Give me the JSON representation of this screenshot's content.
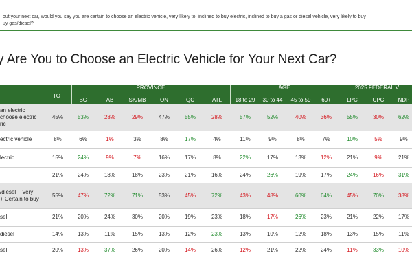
{
  "question": {
    "line1": "out your next car, would you say you are certain to choose an electric vehicle, very likely to, inclined to buy electric, inclined to buy a gas or diesel vehicle, very likely to buy",
    "line2": "uy gas/diesel?"
  },
  "title": "y Are You to Choose an Electric Vehicle for Your Next Car?",
  "header": {
    "tot": "TOT",
    "groups": [
      "PROVINCE",
      "AGE",
      "2025 FEDERAL V"
    ],
    "columns": [
      "BC",
      "AB",
      "SK/MB",
      "ON",
      "QC",
      "ATL",
      "18 to 29",
      "30 to 44",
      "45 to 59",
      "60+",
      "LPC",
      "CPC",
      "NDP"
    ]
  },
  "rows": [
    {
      "label": [
        "an electric",
        "choose electric",
        "ric"
      ],
      "values": [
        "45%",
        "53%",
        "28%",
        "29%",
        "47%",
        "55%",
        "28%",
        "57%",
        "52%",
        "40%",
        "36%",
        "55%",
        "30%",
        "62%"
      ],
      "colors": [
        "n",
        "g",
        "r",
        "r",
        "n",
        "g",
        "r",
        "g",
        "g",
        "r",
        "r",
        "g",
        "r",
        "g"
      ],
      "shade": true
    },
    {
      "label": [
        "ectric vehicle"
      ],
      "values": [
        "8%",
        "6%",
        "1%",
        "3%",
        "8%",
        "17%",
        "4%",
        "11%",
        "9%",
        "8%",
        "7%",
        "10%",
        "5%",
        "9%"
      ],
      "colors": [
        "n",
        "n",
        "r",
        "n",
        "n",
        "g",
        "n",
        "n",
        "n",
        "n",
        "n",
        "g",
        "r",
        "n"
      ],
      "shade": false
    },
    {
      "label": [
        "lectric"
      ],
      "values": [
        "15%",
        "24%",
        "9%",
        "7%",
        "16%",
        "17%",
        "8%",
        "22%",
        "17%",
        "13%",
        "12%",
        "21%",
        "9%",
        "21%"
      ],
      "colors": [
        "n",
        "g",
        "r",
        "r",
        "n",
        "n",
        "n",
        "g",
        "n",
        "n",
        "r",
        "n",
        "r",
        "n"
      ],
      "shade": false
    },
    {
      "label": [
        ""
      ],
      "values": [
        "21%",
        "24%",
        "18%",
        "18%",
        "23%",
        "21%",
        "16%",
        "24%",
        "26%",
        "19%",
        "17%",
        "24%",
        "16%",
        "31%"
      ],
      "colors": [
        "n",
        "n",
        "n",
        "n",
        "n",
        "n",
        "n",
        "n",
        "g",
        "n",
        "n",
        "g",
        "r",
        "g"
      ],
      "shade": false
    },
    {
      "label": [
        "/diesel + Very",
        "+ Certain to buy"
      ],
      "values": [
        "55%",
        "47%",
        "72%",
        "71%",
        "53%",
        "45%",
        "72%",
        "43%",
        "48%",
        "60%",
        "64%",
        "45%",
        "70%",
        "38%"
      ],
      "colors": [
        "n",
        "r",
        "g",
        "g",
        "n",
        "r",
        "g",
        "r",
        "r",
        "g",
        "g",
        "r",
        "g",
        "r"
      ],
      "shade": true
    },
    {
      "label": [
        "sel"
      ],
      "values": [
        "21%",
        "20%",
        "24%",
        "30%",
        "20%",
        "19%",
        "23%",
        "18%",
        "17%",
        "26%",
        "23%",
        "21%",
        "22%",
        "17%"
      ],
      "colors": [
        "n",
        "n",
        "n",
        "n",
        "n",
        "n",
        "n",
        "n",
        "r",
        "g",
        "n",
        "n",
        "n",
        "n"
      ],
      "shade": false
    },
    {
      "label": [
        "diesel"
      ],
      "values": [
        "14%",
        "13%",
        "11%",
        "15%",
        "13%",
        "12%",
        "23%",
        "13%",
        "10%",
        "12%",
        "18%",
        "13%",
        "15%",
        "11%"
      ],
      "colors": [
        "n",
        "n",
        "n",
        "n",
        "n",
        "n",
        "g",
        "n",
        "n",
        "n",
        "n",
        "n",
        "n",
        "n"
      ],
      "shade": false
    },
    {
      "label": [
        "sel"
      ],
      "values": [
        "20%",
        "13%",
        "37%",
        "26%",
        "20%",
        "14%",
        "26%",
        "12%",
        "21%",
        "22%",
        "24%",
        "11%",
        "33%",
        "10%"
      ],
      "colors": [
        "n",
        "r",
        "g",
        "n",
        "n",
        "r",
        "n",
        "r",
        "n",
        "n",
        "n",
        "r",
        "g",
        "r"
      ],
      "shade": false
    }
  ]
}
